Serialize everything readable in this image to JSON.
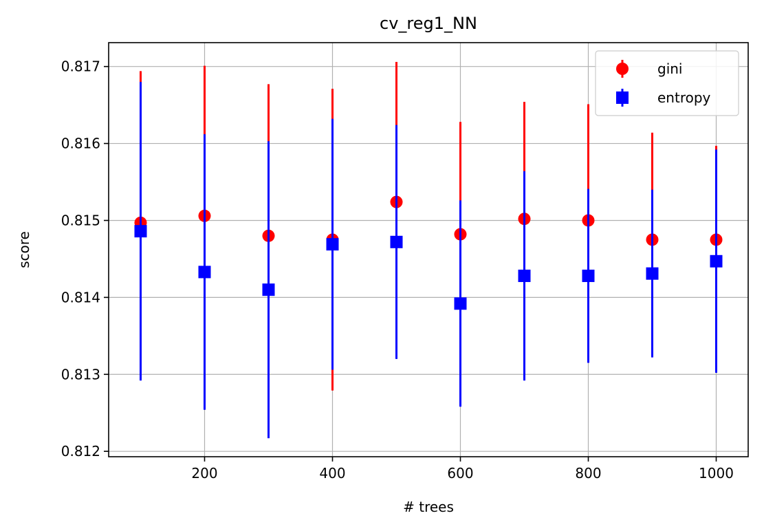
{
  "chart_data": {
    "type": "scatter",
    "title": "cv_reg1_NN",
    "xlabel": "# trees",
    "ylabel": "score",
    "xlim": [
      50,
      1050
    ],
    "ylim": [
      0.81193,
      0.81731
    ],
    "xticks": [
      200,
      400,
      600,
      800,
      1000
    ],
    "yticks": [
      0.812,
      0.813,
      0.814,
      0.815,
      0.816,
      0.817
    ],
    "x_tick_labels": [
      "200",
      "400",
      "600",
      "800",
      "1000"
    ],
    "y_tick_labels": [
      "0.812",
      "0.813",
      "0.814",
      "0.815",
      "0.816",
      "0.817"
    ],
    "grid": true,
    "legend_position": "top-right",
    "x": [
      100,
      200,
      300,
      400,
      500,
      600,
      700,
      800,
      900,
      1000
    ],
    "series": [
      {
        "name": "gini",
        "color": "#ff0000",
        "marker": "circle",
        "values": [
          0.81497,
          0.81506,
          0.8148,
          0.81475,
          0.81524,
          0.81482,
          0.81502,
          0.815,
          0.81475,
          0.81475
        ],
        "errors": [
          0.00197,
          0.00195,
          0.00197,
          0.00196,
          0.00182,
          0.00146,
          0.00152,
          0.00151,
          0.00139,
          0.00122
        ]
      },
      {
        "name": "entropy",
        "color": "#0000ff",
        "marker": "square",
        "values": [
          0.81486,
          0.81433,
          0.8141,
          0.81469,
          0.81472,
          0.81392,
          0.81428,
          0.81428,
          0.81431,
          0.81447
        ],
        "errors": [
          0.00194,
          0.00179,
          0.00193,
          0.00163,
          0.00152,
          0.00134,
          0.00136,
          0.00113,
          0.00109,
          0.00145
        ]
      }
    ]
  }
}
